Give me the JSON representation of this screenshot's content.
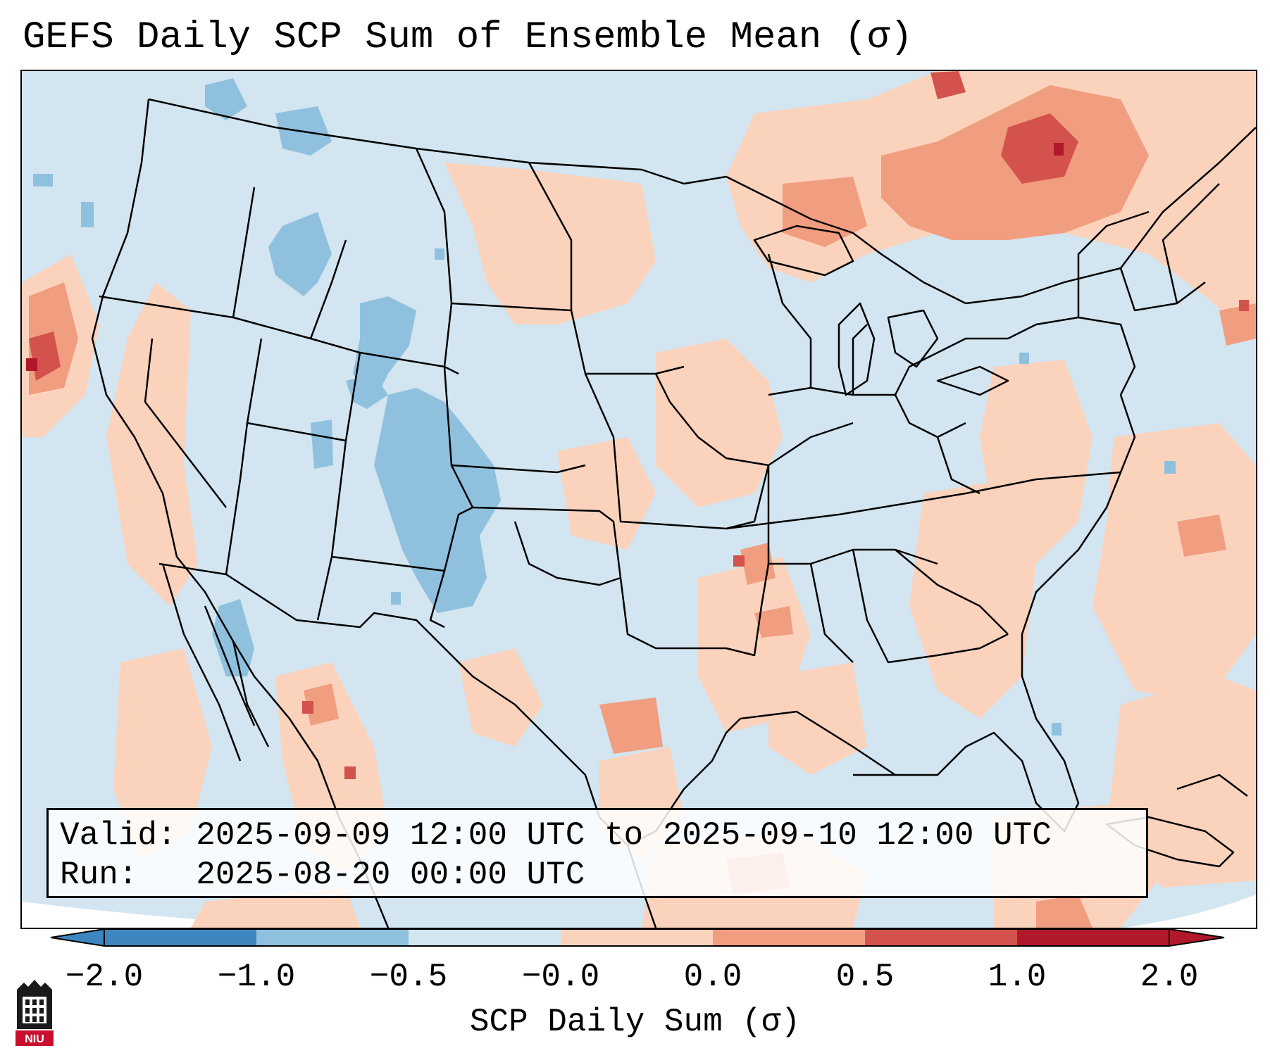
{
  "title": "GEFS Daily SCP Sum of Ensemble Mean (σ)",
  "info": {
    "valid_label": "Valid:",
    "valid_value": "2025-09-09 12:00 UTC to 2025-09-10 12:00 UTC",
    "run_label": "Run:",
    "run_value": "2025-08-20 00:00 UTC"
  },
  "colorbar": {
    "label": "SCP Daily Sum (σ)",
    "ticks": [
      "−2.0",
      "−1.0",
      "−0.5",
      "−0.0",
      "0.0",
      "0.5",
      "1.0",
      "2.0"
    ],
    "colors": [
      "#3d86c0",
      "#8fc1de",
      "#d2e5f0",
      "#f7f7f7",
      "#fbd3bd",
      "#f19d80",
      "#d4524c",
      "#b2182b"
    ]
  },
  "logo": {
    "text": "NIU",
    "name": "niu-logo"
  }
}
